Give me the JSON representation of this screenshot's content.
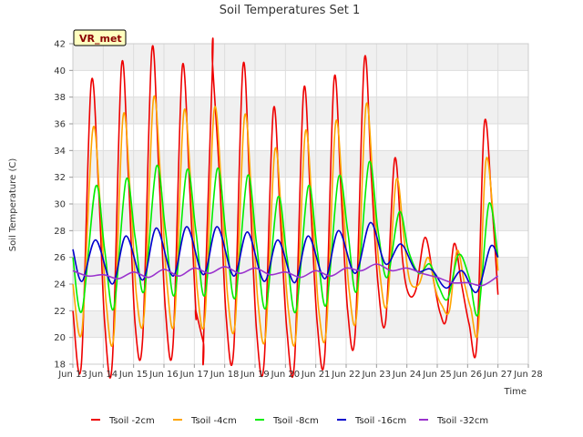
{
  "chart_data": {
    "type": "line",
    "title": "Soil Temperatures Set 1",
    "xlabel": "Time",
    "ylabel": "Soil Temperature (C)",
    "station_label": "VR_met",
    "xlim": [
      13.0,
      28.0
    ],
    "ylim": [
      18,
      42
    ],
    "x_ticks": [
      {
        "x": 13,
        "label": "Jun 13"
      },
      {
        "x": 14,
        "label": "Jun 14"
      },
      {
        "x": 15,
        "label": "Jun 15"
      },
      {
        "x": 16,
        "label": "Jun 16"
      },
      {
        "x": 17,
        "label": "Jun 17"
      },
      {
        "x": 18,
        "label": "Jun 18"
      },
      {
        "x": 19,
        "label": "Jun 19"
      },
      {
        "x": 20,
        "label": "Jun 20"
      },
      {
        "x": 21,
        "label": "Jun 21"
      },
      {
        "x": 22,
        "label": "Jun 22"
      },
      {
        "x": 23,
        "label": "Jun 23"
      },
      {
        "x": 24,
        "label": "Jun 24"
      },
      {
        "x": 25,
        "label": "Jun 25"
      },
      {
        "x": 26,
        "label": "Jun 26"
      },
      {
        "x": 27,
        "label": "Jun 27"
      },
      {
        "x": 28,
        "label": "Jun 28"
      }
    ],
    "y_ticks": [
      18,
      20,
      22,
      24,
      26,
      28,
      30,
      32,
      34,
      36,
      38,
      40,
      42
    ],
    "grid": true,
    "legend_position": "bottom",
    "series": [
      {
        "name": "Tsoil -2cm",
        "color": "#ee0000",
        "x": [
          13.0,
          13.28,
          13.6,
          13.85,
          14.05,
          14.3,
          14.6,
          14.83,
          15.05,
          15.3,
          15.6,
          15.83,
          16.05,
          16.3,
          16.6,
          16.83,
          17.05,
          17.3,
          17.6,
          16.83,
          17.05,
          17.3,
          17.6,
          17.83,
          18.05,
          18.3,
          18.6,
          18.83,
          19.05,
          19.3,
          19.6,
          19.83,
          20.05,
          20.3,
          20.6,
          20.83,
          21.05,
          21.3,
          21.6,
          21.83,
          22.05,
          22.3,
          22.6,
          22.83,
          23.05,
          23.3,
          23.6,
          23.85,
          24.05,
          24.3,
          24.6,
          24.9,
          25.1,
          25.3,
          25.55,
          25.8,
          26.05,
          26.3,
          26.55,
          26.8,
          27.0
        ],
        "y": [
          22.0,
          18.0,
          39.0,
          31.0,
          21.0,
          18.2,
          40.3,
          32.0,
          21.0,
          20.0,
          41.5,
          32.5,
          22.0,
          19.5,
          40.2,
          32.0,
          22.0,
          19.6,
          40.5,
          32.0,
          22.0,
          19.6,
          40.5,
          32.0,
          21.5,
          19.2,
          40.3,
          31.0,
          20.5,
          18.2,
          37.0,
          29.0,
          20.5,
          18.2,
          38.5,
          30.0,
          21.0,
          18.8,
          39.3,
          31.0,
          22.0,
          20.4,
          40.8,
          32.0,
          24.0,
          21.2,
          33.4,
          26.0,
          23.3,
          23.6,
          27.5,
          24.0,
          21.8,
          21.4,
          27.0,
          24.0,
          21.0,
          19.4,
          36.0,
          30.0,
          23.2
        ]
      },
      {
        "name": "Tsoil -4cm",
        "color": "#ffa500",
        "x": [
          13.0,
          13.3,
          13.65,
          13.9,
          14.1,
          14.35,
          14.65,
          14.9,
          15.1,
          15.35,
          15.65,
          15.9,
          16.1,
          16.35,
          16.65,
          16.9,
          17.1,
          17.35,
          17.65,
          17.9,
          18.1,
          18.35,
          18.65,
          18.9,
          19.1,
          19.35,
          19.65,
          19.9,
          20.1,
          20.35,
          20.65,
          20.9,
          21.1,
          21.35,
          21.65,
          21.9,
          22.1,
          22.35,
          22.65,
          22.9,
          23.1,
          23.35,
          23.65,
          23.9,
          24.1,
          24.4,
          24.7,
          24.95,
          25.15,
          25.4,
          25.65,
          25.9,
          26.1,
          26.35,
          26.6,
          26.85,
          27.0
        ],
        "y": [
          24.0,
          20.5,
          35.5,
          30.0,
          22.5,
          20.2,
          36.5,
          30.5,
          23.0,
          21.8,
          37.8,
          31.5,
          24.0,
          21.4,
          36.8,
          31.0,
          23.5,
          21.5,
          37.0,
          31.0,
          23.0,
          21.2,
          36.5,
          30.0,
          22.5,
          20.2,
          34.0,
          28.0,
          22.0,
          20.2,
          35.3,
          29.0,
          22.0,
          20.6,
          36.0,
          30.0,
          23.5,
          21.8,
          37.3,
          31.0,
          25.0,
          22.5,
          31.8,
          27.5,
          24.2,
          24.0,
          26.0,
          23.5,
          22.4,
          22.0,
          26.5,
          24.0,
          22.2,
          20.6,
          33.2,
          29.0,
          25.0
        ]
      },
      {
        "name": "Tsoil -8cm",
        "color": "#00ee00",
        "x": [
          13.0,
          13.3,
          13.75,
          14.05,
          14.35,
          14.75,
          15.05,
          15.35,
          15.75,
          16.05,
          16.35,
          16.75,
          17.05,
          17.35,
          17.75,
          18.05,
          18.35,
          18.75,
          19.05,
          19.35,
          19.75,
          20.05,
          20.35,
          20.75,
          21.05,
          21.35,
          21.75,
          22.05,
          22.35,
          22.75,
          23.05,
          23.35,
          23.75,
          24.05,
          24.4,
          24.75,
          25.05,
          25.35,
          25.7,
          26.05,
          26.35,
          26.7,
          27.0
        ],
        "y": [
          26.0,
          22.0,
          31.3,
          26.5,
          22.2,
          31.8,
          27.5,
          23.5,
          32.8,
          28.0,
          23.2,
          32.5,
          28.0,
          23.2,
          32.6,
          27.5,
          23.0,
          32.1,
          27.0,
          22.2,
          30.5,
          26.0,
          22.0,
          31.3,
          26.5,
          22.5,
          32.0,
          28.0,
          23.5,
          33.1,
          28.0,
          24.5,
          29.4,
          26.5,
          24.8,
          25.5,
          23.8,
          22.9,
          26.2,
          24.5,
          21.8,
          30.0,
          26.0
        ]
      },
      {
        "name": "Tsoil -16cm",
        "color": "#0000cc",
        "x": [
          13.0,
          13.3,
          13.75,
          14.3,
          14.75,
          15.3,
          15.75,
          16.3,
          16.75,
          17.3,
          17.75,
          18.3,
          18.75,
          19.3,
          19.75,
          20.3,
          20.75,
          21.3,
          21.75,
          22.3,
          22.8,
          23.3,
          23.8,
          24.3,
          24.8,
          25.3,
          25.8,
          26.3,
          26.75,
          27.0
        ],
        "y": [
          26.6,
          24.2,
          27.3,
          24.0,
          27.6,
          24.3,
          28.2,
          24.6,
          28.3,
          24.7,
          28.3,
          24.6,
          27.9,
          24.2,
          27.3,
          24.1,
          27.6,
          24.4,
          28.0,
          24.8,
          28.6,
          25.5,
          27.0,
          25.0,
          25.1,
          23.7,
          25.0,
          23.4,
          26.8,
          26.0
        ]
      },
      {
        "name": "Tsoil -32cm",
        "color": "#9a32cd",
        "x": [
          13.0,
          13.5,
          14.0,
          14.5,
          15.0,
          15.5,
          16.0,
          16.5,
          17.0,
          17.5,
          18.0,
          18.5,
          19.0,
          19.5,
          20.0,
          20.5,
          21.0,
          21.5,
          22.0,
          22.5,
          23.0,
          23.5,
          24.0,
          24.5,
          25.0,
          25.5,
          26.0,
          26.5,
          27.0
        ],
        "y": [
          25.0,
          24.6,
          24.7,
          24.4,
          24.9,
          24.5,
          25.1,
          24.6,
          25.2,
          24.8,
          25.3,
          24.8,
          25.2,
          24.7,
          24.9,
          24.5,
          25.0,
          24.6,
          25.2,
          25.0,
          25.5,
          25.0,
          25.2,
          24.8,
          24.5,
          24.1,
          24.1,
          23.9,
          24.6
        ]
      }
    ]
  }
}
